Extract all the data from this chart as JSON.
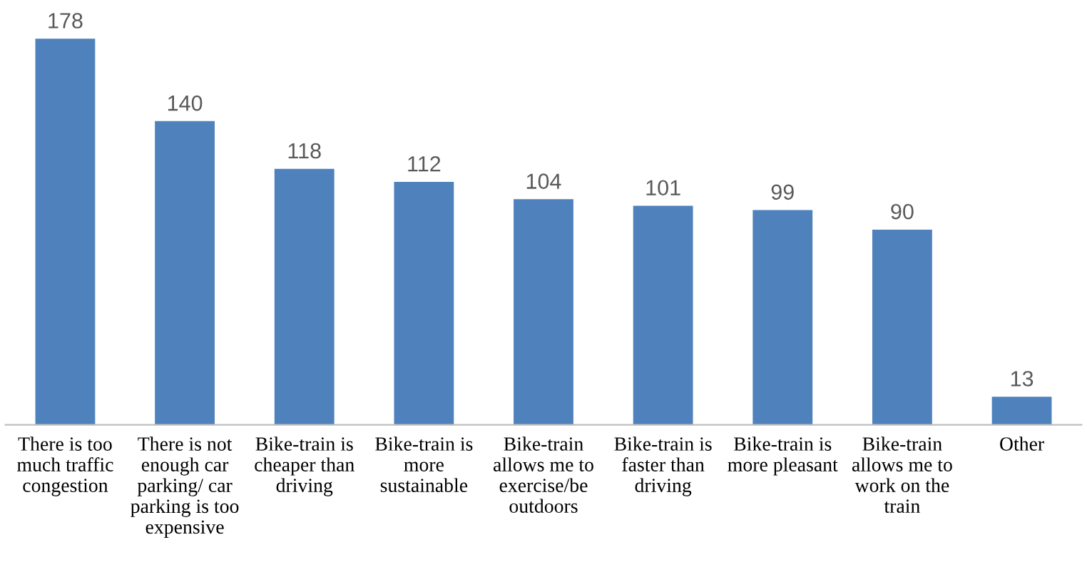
{
  "chart_data": {
    "type": "bar",
    "categories": [
      "There is too much traffic congestion",
      "There is not enough car parking/ car parking is too expensive",
      "Bike-train is cheaper than driving",
      "Bike-train is more sustainable",
      "Bike-train allows me to exercise/be outdoors",
      "Bike-train is faster than driving",
      "Bike-train is more pleasant",
      "Bike-train allows me to work on the train",
      "Other"
    ],
    "values": [
      178,
      140,
      118,
      112,
      104,
      101,
      99,
      90,
      13
    ],
    "color": "#4f81bd",
    "data_labels": true,
    "grid": false,
    "legend": false,
    "tick_labels": "x"
  }
}
